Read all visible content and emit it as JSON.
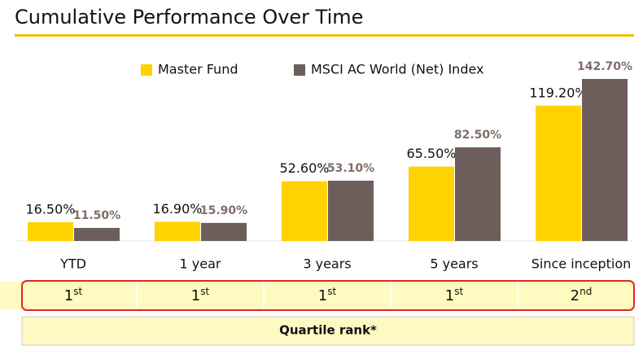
{
  "chart_data": {
    "type": "bar",
    "title": "Cumulative Performance Over Time",
    "categories": [
      "YTD",
      "1 year",
      "3 years",
      "5 years",
      "Since inception"
    ],
    "series": [
      {
        "name": "Master Fund",
        "color": "#ffd200",
        "values": [
          16.5,
          16.9,
          52.6,
          65.5,
          119.2
        ],
        "value_labels": [
          "16.50%",
          "16.90%",
          "52.60%",
          "65.50%",
          "119.20%"
        ]
      },
      {
        "name": "MSCI AC World (Net) Index",
        "color": "#6e5e5b",
        "values": [
          11.5,
          15.9,
          53.1,
          82.5,
          142.7
        ],
        "value_labels": [
          "11.50%",
          "15.90%",
          "53.10%",
          "82.50%",
          "142.70%"
        ]
      }
    ],
    "quartile_ranks": [
      {
        "rank": "1",
        "suffix": "st"
      },
      {
        "rank": "1",
        "suffix": "st"
      },
      {
        "rank": "1",
        "suffix": "st"
      },
      {
        "rank": "1",
        "suffix": "st"
      },
      {
        "rank": "2",
        "suffix": "nd"
      }
    ],
    "quartile_label": "Quartile rank*"
  }
}
